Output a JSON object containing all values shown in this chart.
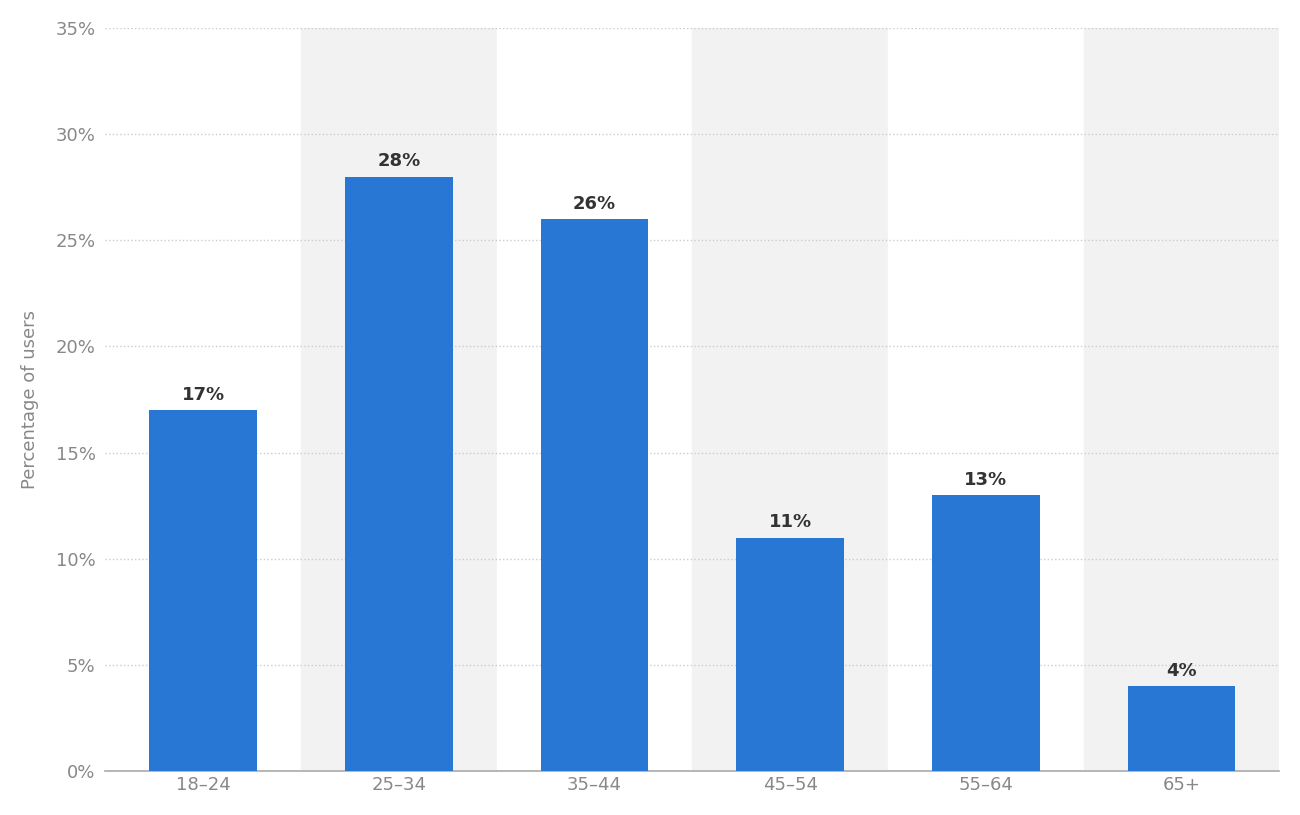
{
  "categories": [
    "18–24",
    "25–34",
    "35–44",
    "45–54",
    "55–64",
    "65+"
  ],
  "values": [
    17,
    28,
    26,
    11,
    13,
    4
  ],
  "bar_color": "#2877d4",
  "ylabel": "Percentage of users",
  "ylim": [
    0,
    35
  ],
  "yticks": [
    0,
    5,
    10,
    15,
    20,
    25,
    30,
    35
  ],
  "ytick_labels": [
    "0%",
    "5%",
    "10%",
    "15%",
    "20%",
    "25%",
    "30%",
    "35%"
  ],
  "value_labels": [
    "17%",
    "28%",
    "26%",
    "11%",
    "13%",
    "4%"
  ],
  "background_color": "#ffffff",
  "plot_bg_color": "#ffffff",
  "col_bg_even": "#f2f2f2",
  "col_bg_odd": "#ffffff",
  "grid_color": "#cccccc",
  "bar_width": 0.55,
  "tick_fontsize": 13,
  "ylabel_fontsize": 13,
  "value_label_fontsize": 13
}
